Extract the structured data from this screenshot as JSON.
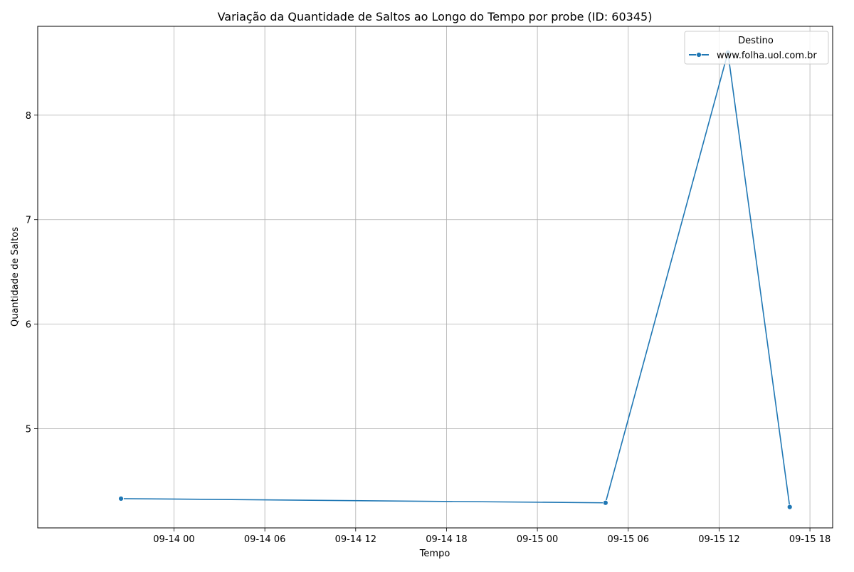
{
  "chart_data": {
    "type": "line",
    "title": "Variação da Quantidade de Saltos ao Longo do Tempo por probe (ID: 60345)",
    "xlabel": "Tempo",
    "ylabel": "Quantidade de Saltos",
    "x_ticks": [
      {
        "t": "2023-09-14T00:00",
        "label": "09-14 00"
      },
      {
        "t": "2023-09-14T06:00",
        "label": "09-14 06"
      },
      {
        "t": "2023-09-14T12:00",
        "label": "09-14 12"
      },
      {
        "t": "2023-09-14T18:00",
        "label": "09-14 18"
      },
      {
        "t": "2023-09-15T00:00",
        "label": "09-15 00"
      },
      {
        "t": "2023-09-15T06:00",
        "label": "09-15 06"
      },
      {
        "t": "2023-09-15T12:00",
        "label": "09-15 12"
      },
      {
        "t": "2023-09-15T18:00",
        "label": "09-15 18"
      }
    ],
    "y_ticks": [
      5,
      6,
      7,
      8
    ],
    "xlim": [
      "2023-09-13T15:00",
      "2023-09-15T19:30"
    ],
    "ylim": [
      4.05,
      8.85
    ],
    "grid": true,
    "legend": {
      "title": "Destino",
      "position": "top-right"
    },
    "series": [
      {
        "name": "www.folha.uol.com.br",
        "color": "#1f77b4",
        "marker": "circle",
        "points": [
          {
            "x": "2023-09-13T20:30",
            "y": 4.33
          },
          {
            "x": "2023-09-15T04:30",
            "y": 4.29
          },
          {
            "x": "2023-09-15T12:35",
            "y": 8.6
          },
          {
            "x": "2023-09-15T16:40",
            "y": 4.25
          }
        ]
      }
    ]
  }
}
